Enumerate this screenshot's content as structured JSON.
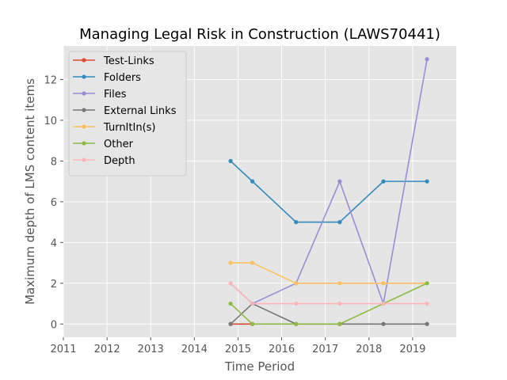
{
  "chart_data": {
    "type": "line",
    "title": "Managing Legal Risk in Construction (LAWS70441)",
    "xlabel": "Time Period",
    "ylabel": "Maximum depth of LMS content items",
    "xlim": [
      2011.0,
      2020.0
    ],
    "ylim": [
      -0.65,
      13.65
    ],
    "x_ticks": [
      2011,
      2012,
      2013,
      2014,
      2015,
      2016,
      2017,
      2018,
      2019
    ],
    "x_tick_labels": [
      "2011",
      "2012",
      "2013",
      "2014",
      "2015",
      "2016",
      "2017",
      "2018",
      "2019"
    ],
    "y_ticks": [
      0,
      2,
      4,
      6,
      8,
      10,
      12
    ],
    "y_tick_labels": [
      "0",
      "2",
      "4",
      "6",
      "8",
      "10",
      "12"
    ],
    "grid": true,
    "legend_position": "upper-left",
    "x": [
      2014.83,
      2015.33,
      2016.33,
      2017.33,
      2018.33,
      2019.33
    ],
    "series": [
      {
        "name": "Test-Links",
        "color": "#e24a33",
        "values": [
          0,
          0,
          null,
          null,
          null,
          null
        ]
      },
      {
        "name": "Folders",
        "color": "#348abd",
        "values": [
          8,
          7,
          5,
          5,
          7,
          7
        ]
      },
      {
        "name": "Files",
        "color": "#988ed5",
        "values": [
          2,
          1,
          2,
          7,
          1,
          13
        ]
      },
      {
        "name": "External Links",
        "color": "#777777",
        "values": [
          0,
          1,
          0,
          0,
          0,
          0
        ]
      },
      {
        "name": "TurnItIn(s)",
        "color": "#fbc15e",
        "values": [
          3,
          3,
          2,
          2,
          2,
          2
        ]
      },
      {
        "name": "Other",
        "color": "#8eba42",
        "values": [
          1,
          0,
          0,
          0,
          1,
          2
        ]
      },
      {
        "name": "Depth",
        "color": "#ffb5b8",
        "values": [
          2,
          1,
          1,
          1,
          1,
          1
        ]
      }
    ]
  }
}
